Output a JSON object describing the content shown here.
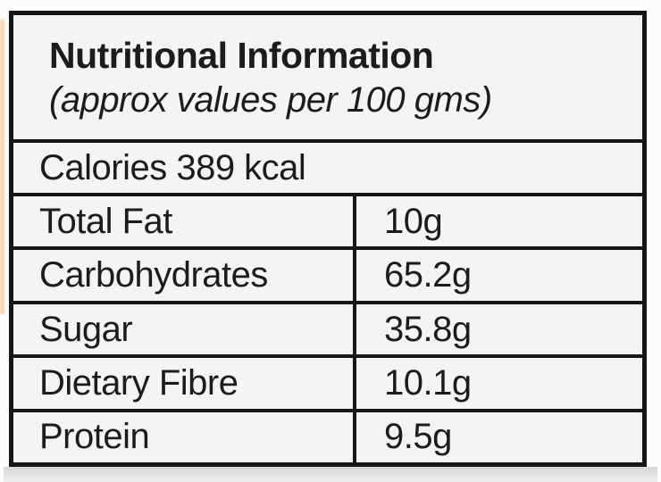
{
  "table": {
    "header": {
      "title": "Nutritional Information",
      "subtitle": "(approx values per 100 gms)"
    },
    "calories": {
      "text": "Calories 389 kcal"
    },
    "rows": [
      {
        "label": "Total Fat",
        "value": "10g"
      },
      {
        "label": "Carbohydrates",
        "value": "65.2g"
      },
      {
        "label": "Sugar",
        "value": "35.8g"
      },
      {
        "label": "Dietary Fibre",
        "value": "10.1g"
      },
      {
        "label": "Protein",
        "value": "9.5g"
      }
    ],
    "colors": {
      "border": "#161616",
      "cell_background": "#f4f4f2",
      "text": "#1c1c1c",
      "page_background": "#fcfcfb"
    }
  }
}
